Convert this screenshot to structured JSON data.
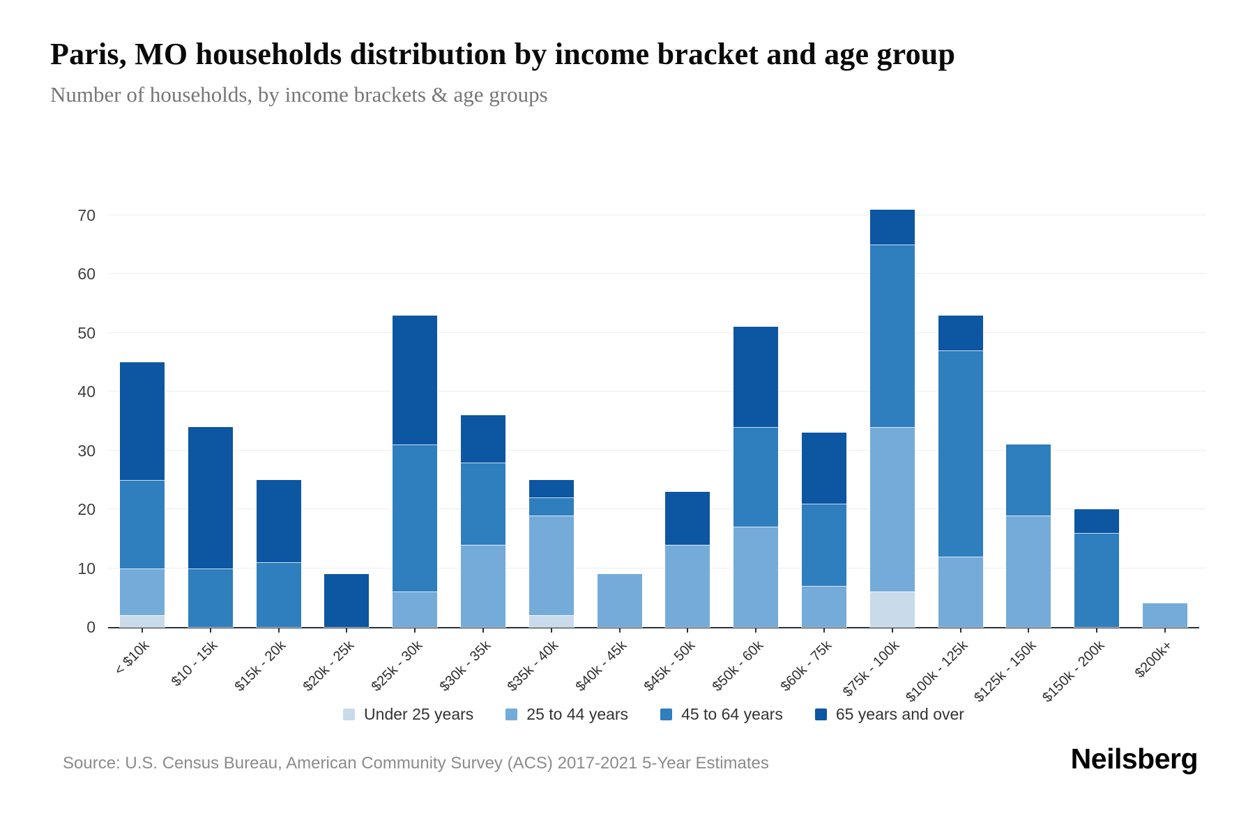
{
  "header": {
    "title": "Paris, MO households distribution by income bracket and age group",
    "subtitle": "Number of households, by income brackets & age groups"
  },
  "footer": {
    "source": "Source: U.S. Census Bureau, American Community Survey (ACS) 2017-2021 5-Year Estimates",
    "brand": "Neilsberg"
  },
  "chart_data": {
    "type": "bar",
    "stacked": true,
    "title": "Paris, MO households distribution by income bracket and age group",
    "xlabel": "",
    "ylabel": "Number of households",
    "ylim": [
      0,
      70
    ],
    "yticks": [
      0,
      10,
      20,
      30,
      40,
      50,
      60,
      70
    ],
    "grid": true,
    "legend_position": "bottom",
    "categories": [
      "< $10k",
      "$10 - 15k",
      "$15k - 20k",
      "$20k - 25k",
      "$25k - 30k",
      "$30k - 35k",
      "$35k - 40k",
      "$40k - 45k",
      "$45k - 50k",
      "$50k - 60k",
      "$60k - 75k",
      "$75k - 100k",
      "$100k - 125k",
      "$125k - 150k",
      "$150k - 200k",
      "$200k+"
    ],
    "series": [
      {
        "name": "Under 25 years",
        "color": "#c9dbeb",
        "values": [
          2,
          0,
          0,
          0,
          0,
          0,
          2,
          0,
          0,
          0,
          0,
          6,
          0,
          0,
          0,
          0
        ]
      },
      {
        "name": "25 to 44 years",
        "color": "#74abd8",
        "values": [
          8,
          0,
          0,
          0,
          6,
          14,
          17,
          9,
          14,
          17,
          7,
          28,
          12,
          19,
          0,
          4
        ]
      },
      {
        "name": "45 to 64 years",
        "color": "#2f7ebe",
        "values": [
          15,
          10,
          11,
          0,
          25,
          14,
          3,
          0,
          0,
          17,
          14,
          31,
          35,
          12,
          16,
          0
        ]
      },
      {
        "name": "65 years and over",
        "color": "#0d56a2",
        "values": [
          20,
          24,
          14,
          9,
          22,
          8,
          3,
          0,
          9,
          17,
          12,
          6,
          6,
          0,
          4,
          0
        ]
      }
    ],
    "totals": [
      45,
      34,
      25,
      9,
      53,
      36,
      25,
      9,
      23,
      51,
      33,
      71,
      53,
      31,
      20,
      4
    ]
  }
}
